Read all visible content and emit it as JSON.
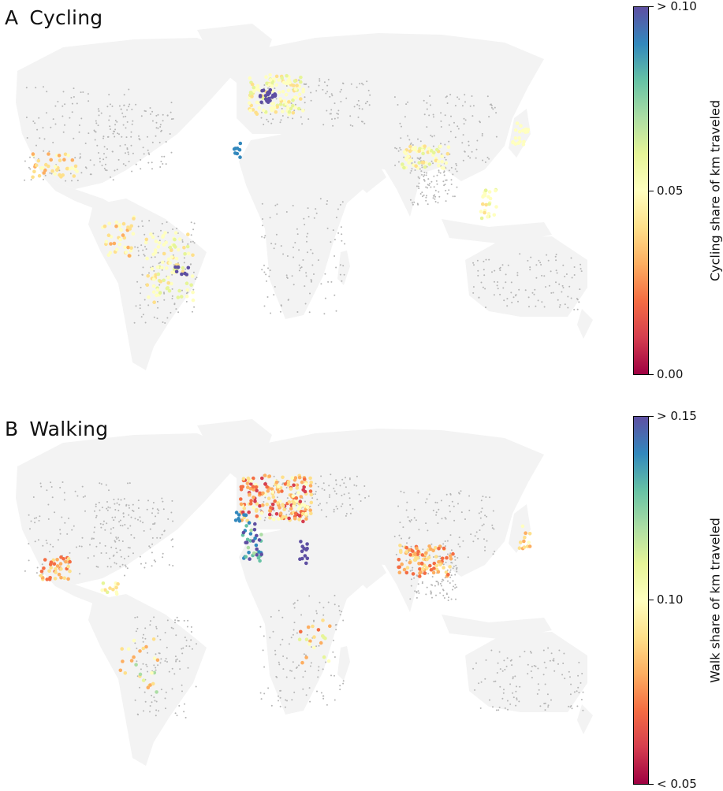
{
  "panels": [
    {
      "letter": "A",
      "title": "Cycling",
      "colorbar_label": "Cycling share of km traveled",
      "colorbar_ticks": [
        "> 0.10",
        "0.05",
        "0.00"
      ]
    },
    {
      "letter": "B",
      "title": "Walking",
      "colorbar_label": "Walk share of km traveled",
      "colorbar_ticks": [
        "> 0.15",
        "0.10",
        "< 0.05"
      ]
    }
  ],
  "colors": {
    "land": "#f3f3f3",
    "ocean": "#ffffff",
    "no_data_dot": "#b5b5b5",
    "colormap": [
      "#9e0142",
      "#d53e4f",
      "#f46d43",
      "#fdae61",
      "#fee08b",
      "#ffffbf",
      "#e6f598",
      "#abdda4",
      "#66c2a5",
      "#3288bd",
      "#5e4fa2"
    ]
  },
  "colormap_name": "Spectral",
  "legend_placement": "right"
}
